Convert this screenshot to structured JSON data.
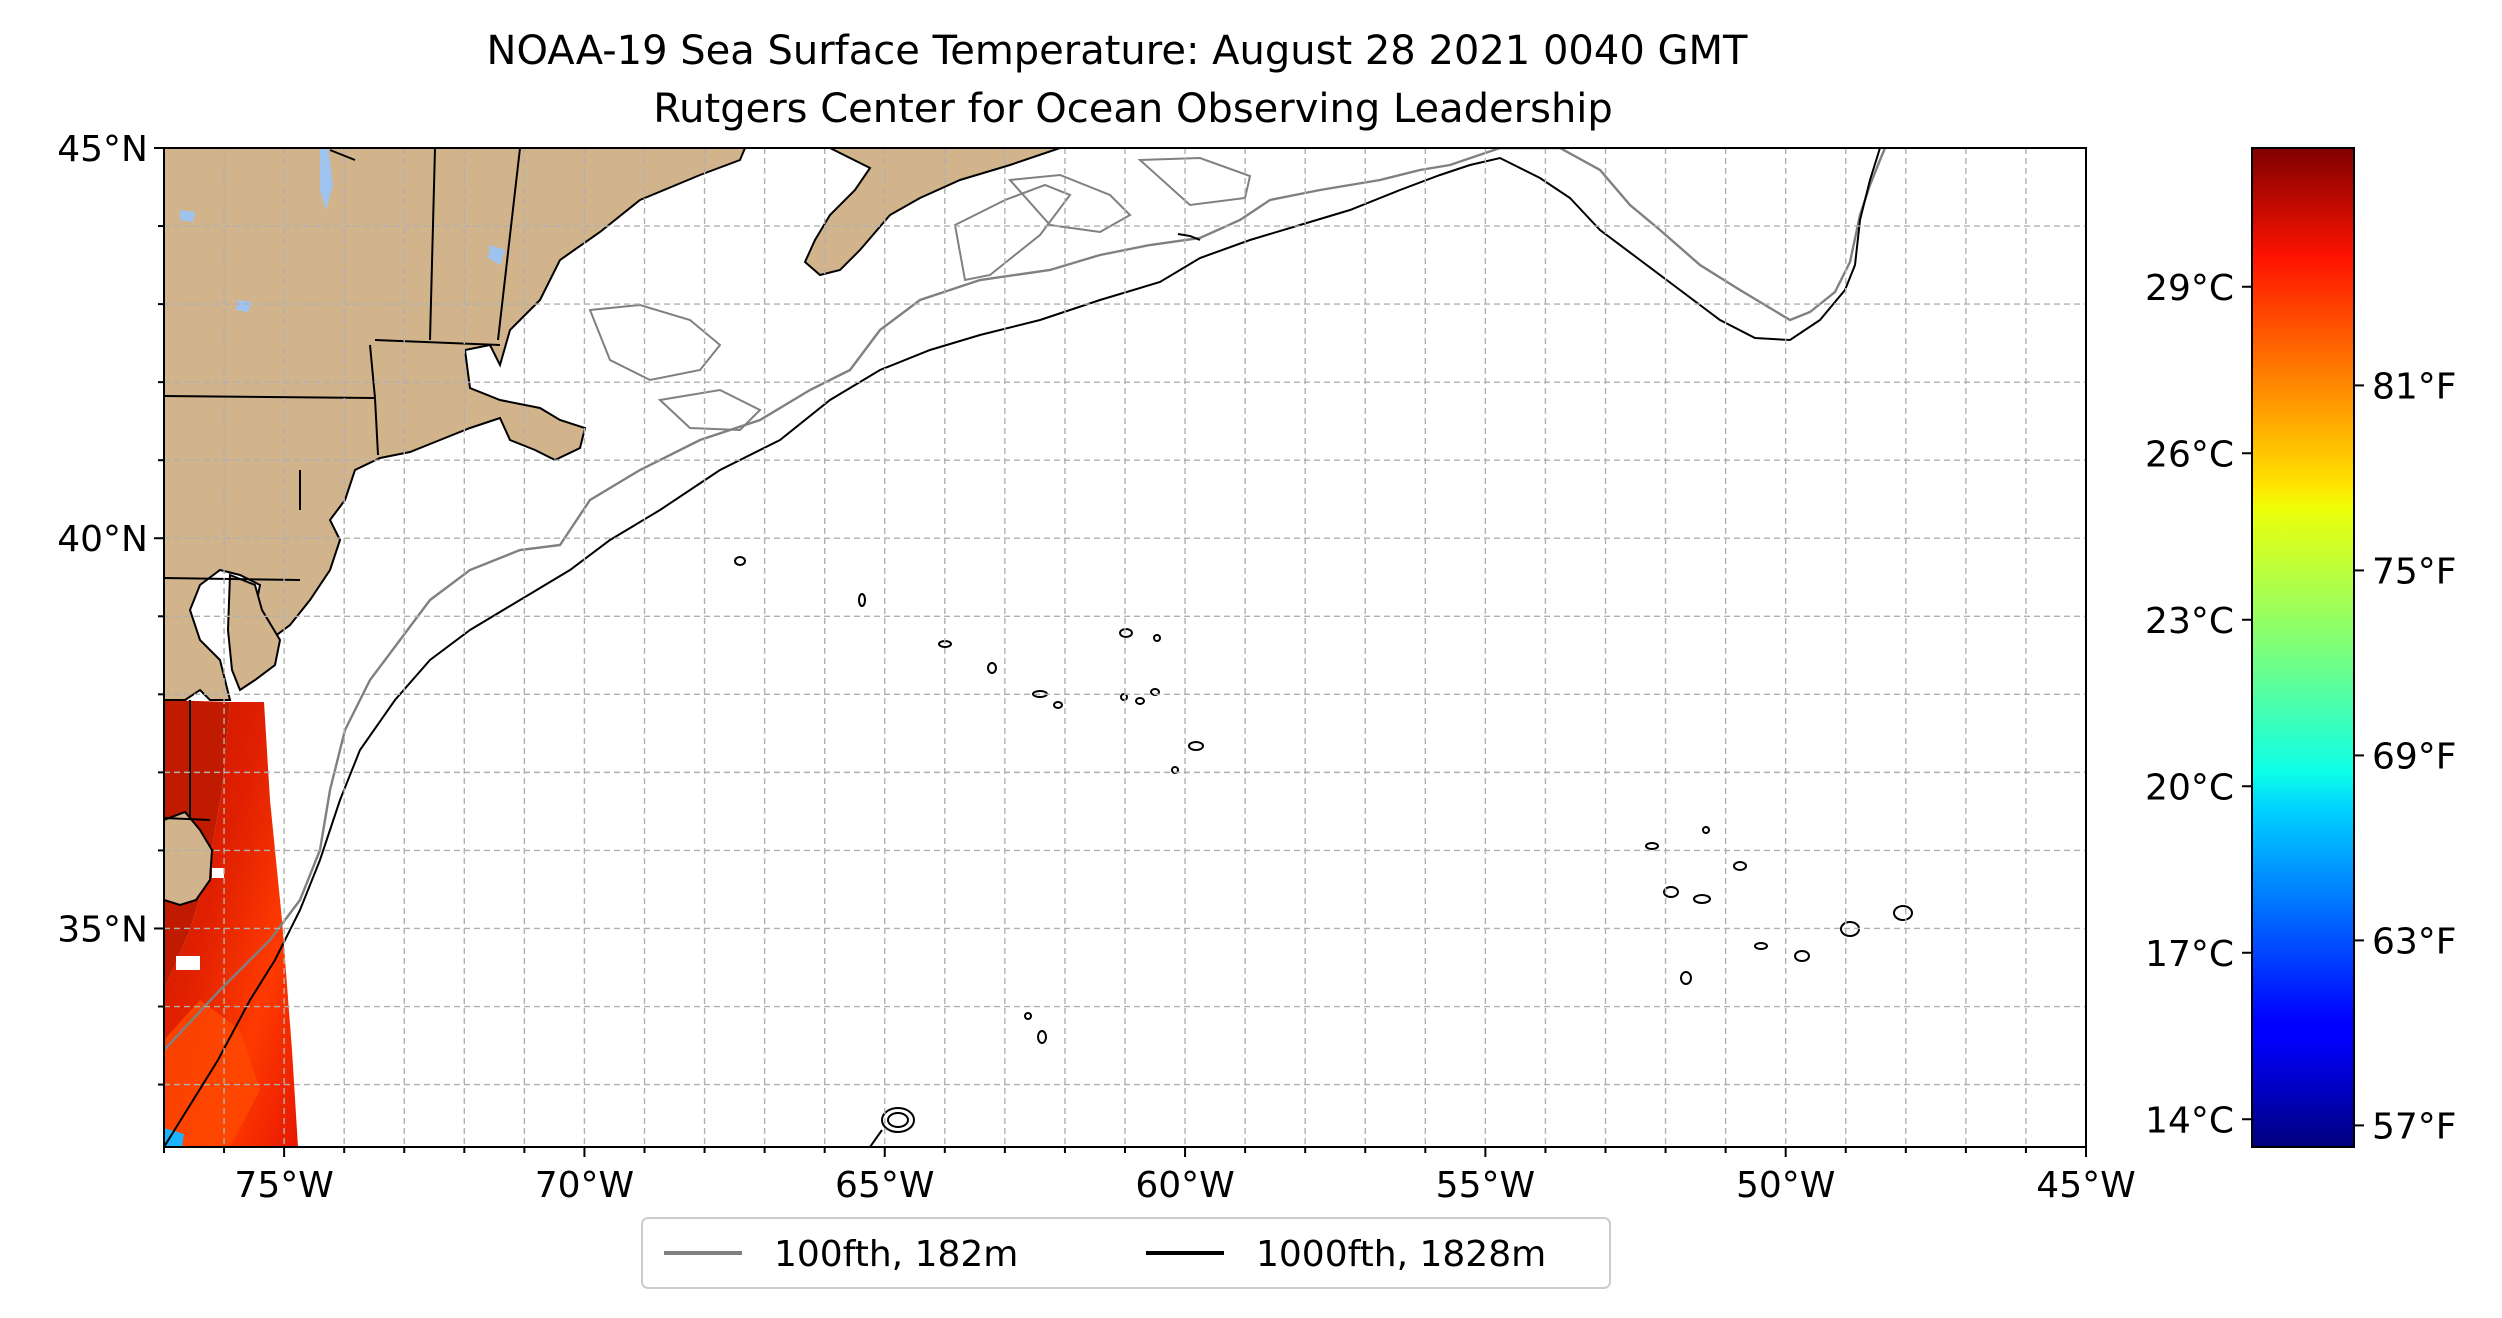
{
  "title": {
    "line1": "NOAA-19 Sea Surface Temperature: August 28 2021 0040 GMT",
    "line2": "Rutgers Center for Ocean Observing Leadership"
  },
  "map": {
    "lon_range": [
      -77,
      -45
    ],
    "lat_range": [
      32.2,
      45
    ],
    "lon_ticks": [
      {
        "value": -75,
        "label": "75°W"
      },
      {
        "value": -70,
        "label": "70°W"
      },
      {
        "value": -65,
        "label": "65°W"
      },
      {
        "value": -60,
        "label": "60°W"
      },
      {
        "value": -55,
        "label": "55°W"
      },
      {
        "value": -50,
        "label": "50°W"
      },
      {
        "value": -45,
        "label": "45°W"
      }
    ],
    "lat_ticks": [
      {
        "value": 45,
        "label": "45°N"
      },
      {
        "value": 40,
        "label": "40°N"
      },
      {
        "value": 35,
        "label": "35°N"
      }
    ],
    "grid": true,
    "land_color": "#d2b48c",
    "lake_color": "#9fc3ef"
  },
  "legend": {
    "placement": "bottom-center",
    "items": [
      {
        "label": "100fth, 182m",
        "color": "#808080"
      },
      {
        "label": "1000fth, 1828m",
        "color": "#000000"
      }
    ]
  },
  "colorbar": {
    "colormap": "jet",
    "range_c": [
      13.5,
      31.5
    ],
    "celsius_ticks": [
      {
        "value": 14,
        "label": "14°C"
      },
      {
        "value": 17,
        "label": "17°C"
      },
      {
        "value": 20,
        "label": "20°C"
      },
      {
        "value": 23,
        "label": "23°C"
      },
      {
        "value": 26,
        "label": "26°C"
      },
      {
        "value": 29,
        "label": "29°C"
      }
    ],
    "fahrenheit_ticks": [
      {
        "value": 57,
        "label": "57°F"
      },
      {
        "value": 63,
        "label": "63°F"
      },
      {
        "value": 69,
        "label": "69°F"
      },
      {
        "value": 75,
        "label": "75°F"
      },
      {
        "value": 81,
        "label": "81°F"
      }
    ]
  }
}
